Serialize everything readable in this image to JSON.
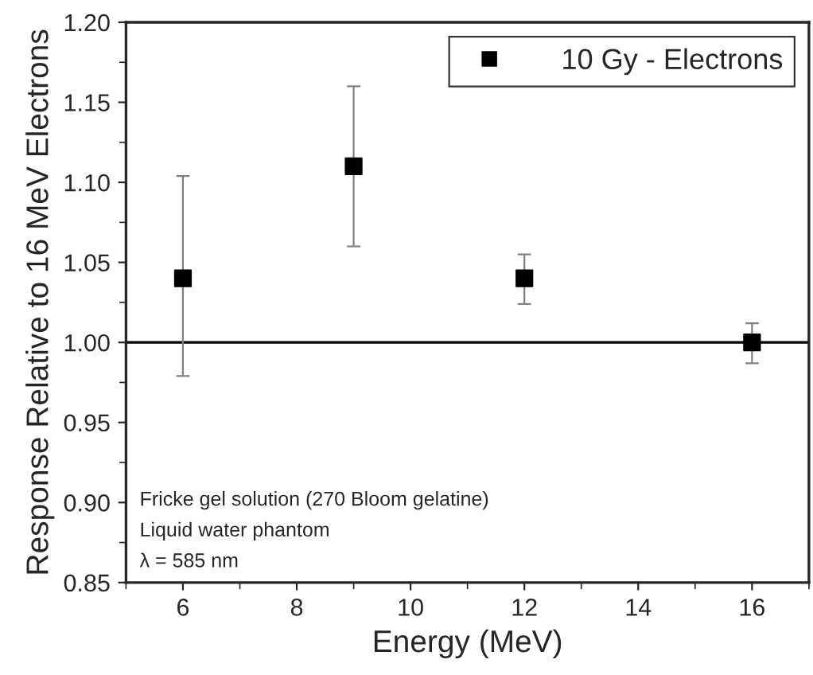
{
  "chart_data": {
    "type": "scatter",
    "xlabel": "Energy (MeV)",
    "ylabel": "Response Relative to 16 MeV Electrons",
    "x": [
      6,
      9,
      12,
      16
    ],
    "series": [
      {
        "name": "10 Gy - Electrons",
        "color": "#000000",
        "values": [
          1.04,
          1.11,
          1.04,
          1.0
        ],
        "errors": [
          [
            0.979,
            1.104
          ],
          [
            1.06,
            1.16
          ],
          [
            1.024,
            1.055
          ],
          [
            0.987,
            1.012
          ]
        ]
      }
    ],
    "xlim": [
      5,
      17
    ],
    "xticks": [
      6,
      8,
      10,
      12,
      14,
      16
    ],
    "ylim": [
      0.85,
      1.2
    ],
    "yticks": [
      {
        "value": 0.85,
        "label": "0.85"
      },
      {
        "value": 0.9,
        "label": "0.90"
      },
      {
        "value": 0.95,
        "label": "0.95"
      },
      {
        "value": 1.0,
        "label": "1.00"
      },
      {
        "value": 1.05,
        "label": "1.05"
      },
      {
        "value": 1.1,
        "label": "1.10"
      },
      {
        "value": 1.15,
        "label": "1.15"
      },
      {
        "value": 1.2,
        "label": "1.20"
      }
    ],
    "ref_lines": [
      {
        "axis": "y",
        "value": 1.0,
        "color": "#000000"
      }
    ],
    "annotations": [
      "Fricke gel solution (270 Bloom gelatine)",
      "Liquid water phantom",
      "λ = 585 nm"
    ],
    "marker": "square",
    "legend": "top right",
    "grid": false
  }
}
